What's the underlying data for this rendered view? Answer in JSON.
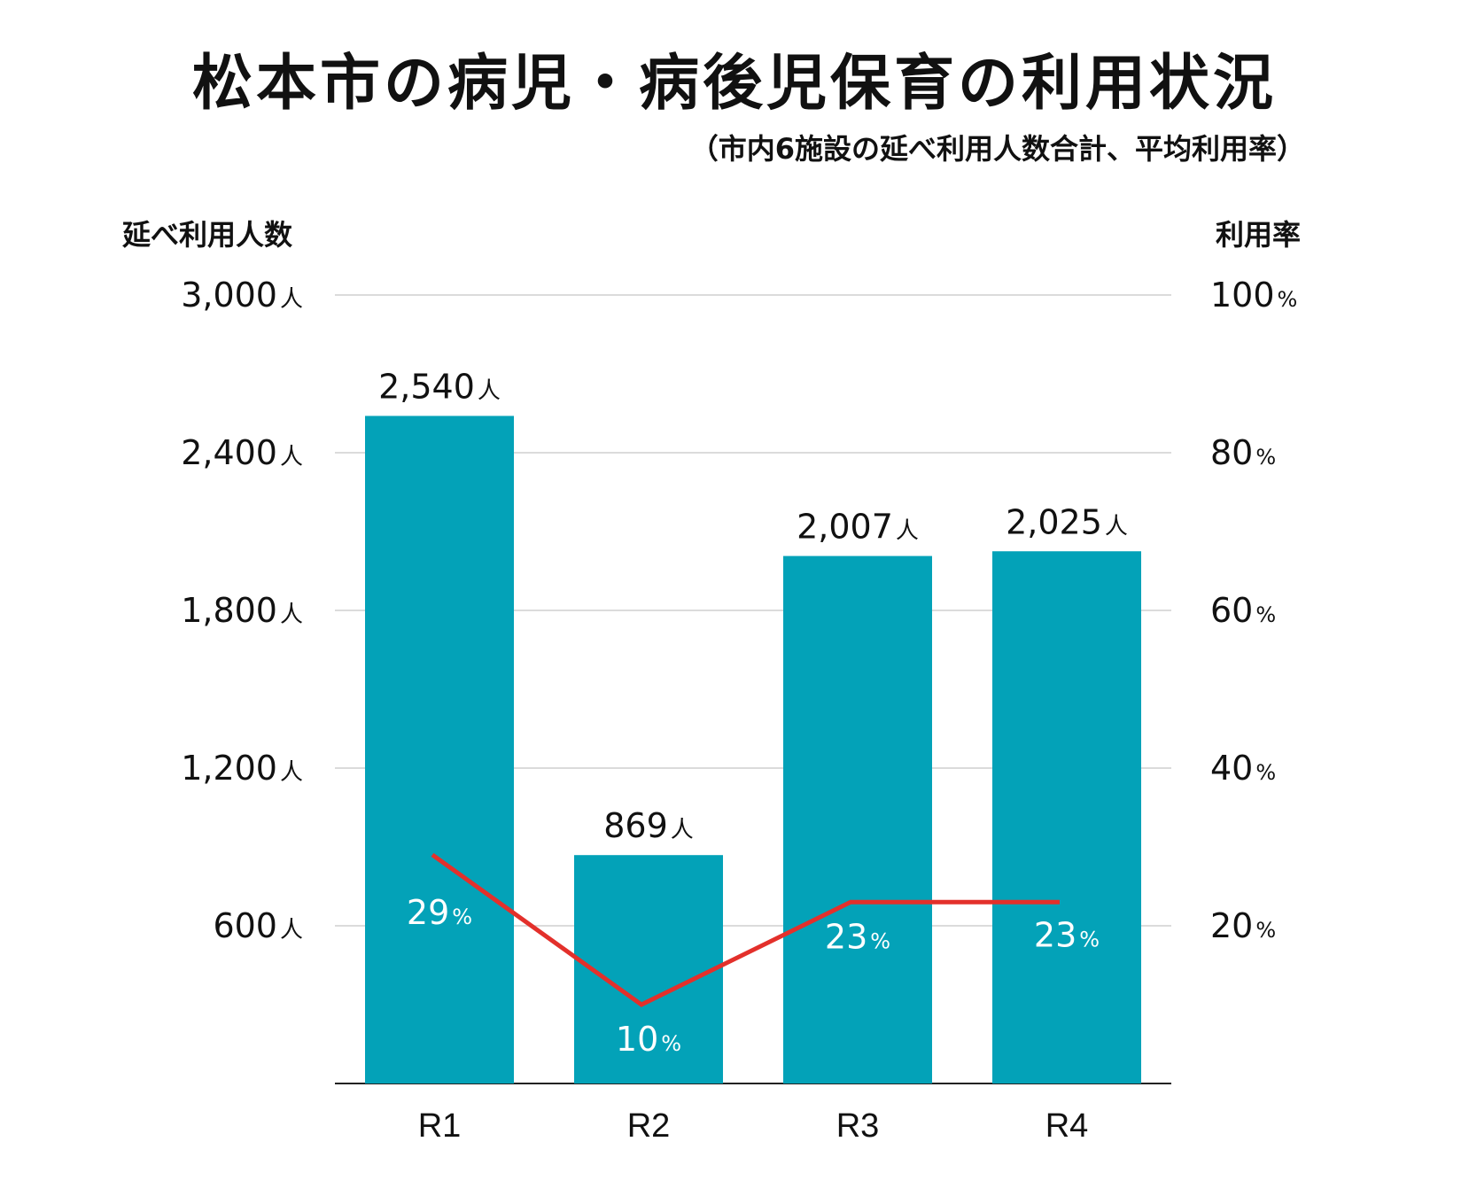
{
  "title": "松本市の病児・病後児保育の利用状況",
  "subtitle": "（市内6施設の延べ利用人数合計、平均利用率）",
  "colors": {
    "bar": "#03a2b8",
    "line": "#e3302b",
    "grid": "#cfcfcf",
    "rate_label": "#ffffff"
  },
  "chart_data": {
    "type": "bar",
    "categories": [
      "R1",
      "R2",
      "R3",
      "R4"
    ],
    "series": [
      {
        "name": "延べ利用人数",
        "type": "bar",
        "axis": "left",
        "values": [
          2540,
          869,
          2007,
          2025
        ],
        "labels": [
          "2,540",
          "869",
          "2,007",
          "2,025"
        ],
        "unit": "人"
      },
      {
        "name": "利用率",
        "type": "line",
        "axis": "right",
        "values": [
          29,
          10,
          23,
          23
        ],
        "labels": [
          "29",
          "10",
          "23",
          "23"
        ],
        "unit": "%"
      }
    ],
    "y_left": {
      "label": "延べ利用人数",
      "range": [
        0,
        3000
      ],
      "ticks": [
        600,
        1200,
        1800,
        2400,
        3000
      ],
      "tick_labels": [
        "600",
        "1,200",
        "1,800",
        "2,400",
        "3,000"
      ],
      "unit": "人"
    },
    "y_right": {
      "label": "利用率",
      "range": [
        0,
        100
      ],
      "ticks": [
        20,
        40,
        60,
        80,
        100
      ],
      "tick_labels": [
        "20",
        "40",
        "60",
        "80",
        "100"
      ],
      "unit": "%"
    },
    "grid": true
  }
}
